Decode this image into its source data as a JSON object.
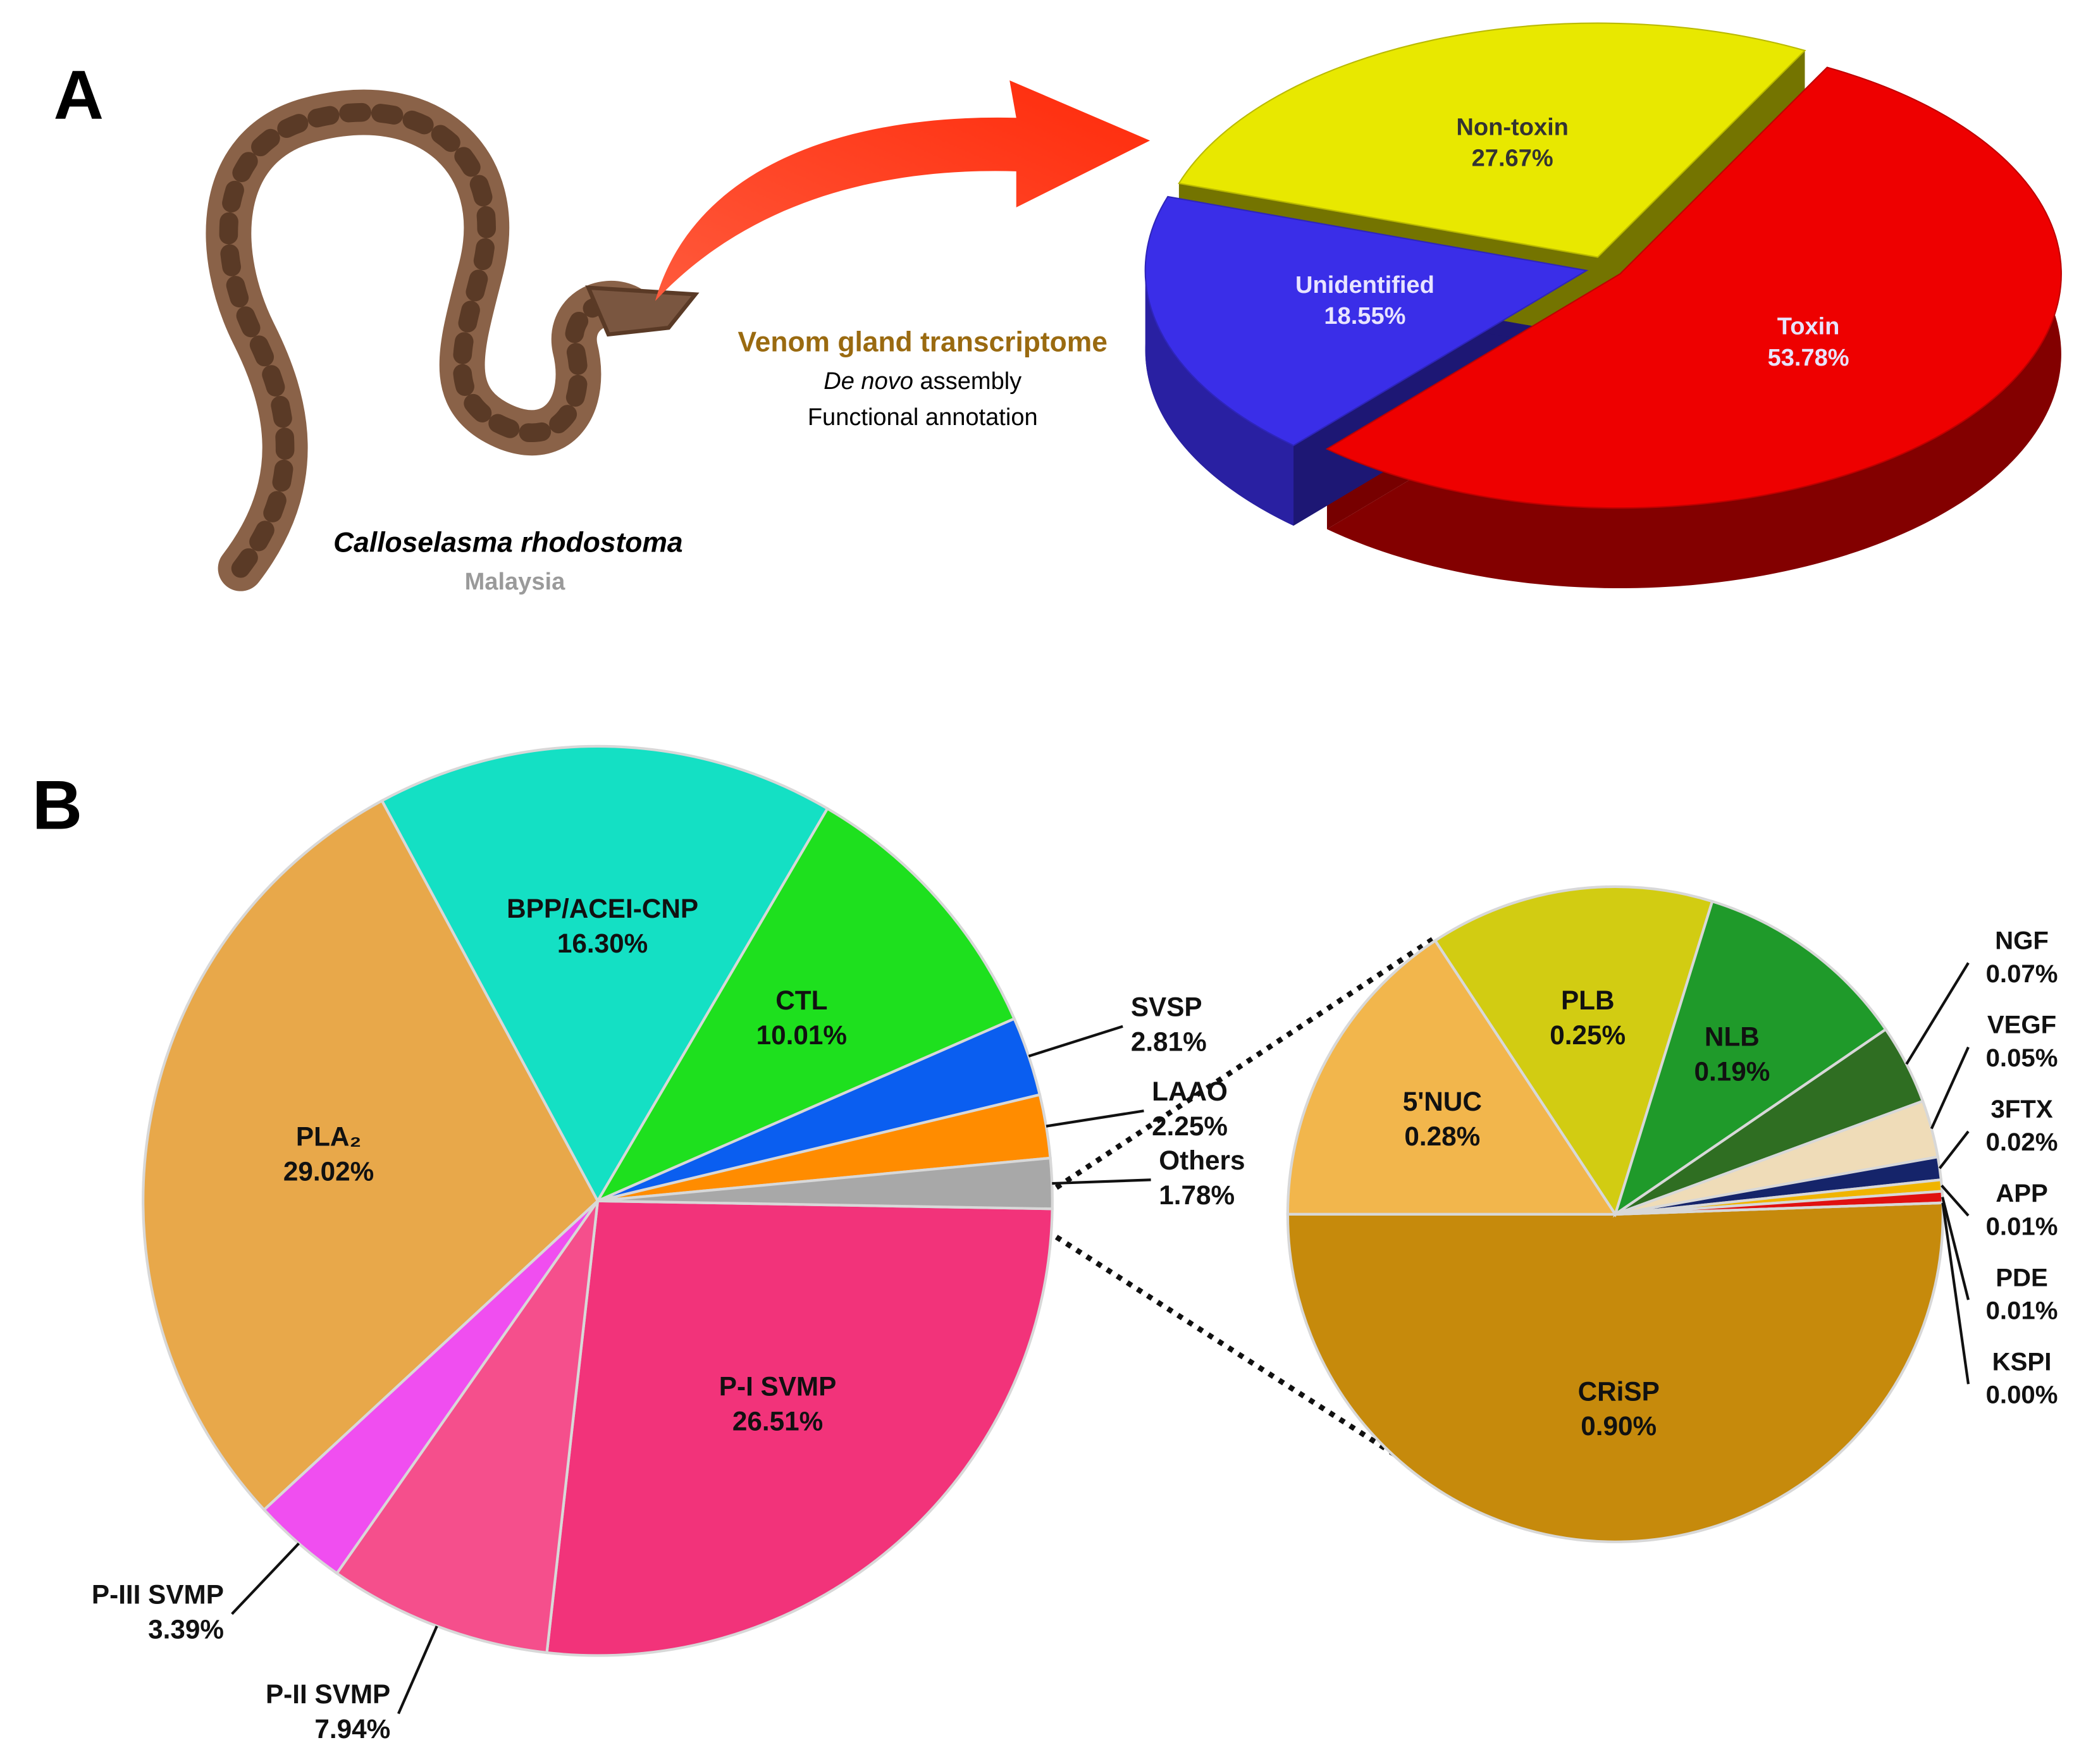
{
  "figure": {
    "panels": [
      "A",
      "B"
    ],
    "species": "Calloselasma  rhodostoma",
    "location": "Malaysia",
    "pipeline": {
      "title": "Venom gland transcriptome",
      "step1_italic": "De novo",
      "step1_rest": " assembly",
      "step2": "Functional annotation"
    }
  },
  "chart_data": [
    {
      "type": "pie3d",
      "categories": [
        "Toxin",
        "Unidentified",
        "Non-toxin"
      ],
      "values": [
        53.78,
        18.55,
        27.67
      ],
      "value_labels": [
        "53.78%",
        "18.55%",
        "27.67%"
      ],
      "colors": [
        "#ee0000",
        "#3a2ee8",
        "#e8e800"
      ]
    },
    {
      "type": "pie",
      "categories": [
        "P-I SVMP",
        "P-II SVMP",
        "P-III SVMP",
        "PLA₂",
        "BPP/ACEI-CNP",
        "CTL",
        "SVSP",
        "LAAO",
        "Others"
      ],
      "values": [
        26.51,
        7.94,
        3.39,
        29.02,
        16.3,
        10.01,
        2.81,
        2.25,
        1.78
      ],
      "value_labels": [
        "26.51%",
        "7.94%",
        "3.39%",
        "29.02%",
        "16.30%",
        "10.01%",
        "2.81%",
        "2.25%",
        "1.78%"
      ],
      "colors": [
        "#f2337a",
        "#f54f8c",
        "#f04ef0",
        "#e8a84a",
        "#14e0c4",
        "#1ee01e",
        "#0a5ef0",
        "#ff8c00",
        "#a8a8a8"
      ]
    },
    {
      "type": "pie",
      "categories": [
        "CRiSP",
        "5'NUC",
        "PLB",
        "NLB",
        "NGF",
        "VEGF",
        "3FTX",
        "APP",
        "PDE",
        "KSPI"
      ],
      "values": [
        0.9,
        0.28,
        0.25,
        0.19,
        0.07,
        0.05,
        0.02,
        0.01,
        0.01,
        0.0
      ],
      "value_labels": [
        "0.90%",
        "0.28%",
        "0.25%",
        "0.19%",
        "0.07%",
        "0.05%",
        "0.02%",
        "0.01%",
        "0.01%",
        "0.00%"
      ],
      "colors": [
        "#c68a0c",
        "#f2b64c",
        "#d2cc12",
        "#1f9a2a",
        "#2f6e22",
        "#efdcb8",
        "#15246a",
        "#f0b400",
        "#e01010",
        "#3a3a3a"
      ]
    }
  ]
}
